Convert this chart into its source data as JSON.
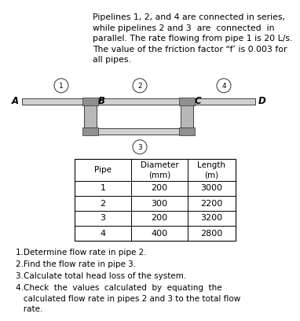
{
  "title_text": "Pipelines 1, 2, and 4 are connected in series,\nwhile pipelines 2 and 3  are  connected  in\nparallel. The rate flowing from pipe 1 is 20 L/s.\nThe value of the friction factor “f’ is 0.003 for\nall pipes.",
  "table_headers": [
    "Pipe",
    "Diameter\n(mm)",
    "Length\n(m)"
  ],
  "table_data": [
    [
      "1",
      "200",
      "3000"
    ],
    [
      "2",
      "300",
      "2200"
    ],
    [
      "3",
      "200",
      "3200"
    ],
    [
      "4",
      "400",
      "2800"
    ]
  ],
  "questions": [
    "1.Determine flow rate in pipe 2.",
    "2.Find the flow rate in pipe 3.",
    "3.Calculate total head loss of the system.",
    "4.Check  the  values  calculated  by  equating  the\n   calculated flow rate in pipes 2 and 3 to the total flow\n   rate."
  ],
  "bg_color": "#ffffff",
  "text_color": "#000000"
}
